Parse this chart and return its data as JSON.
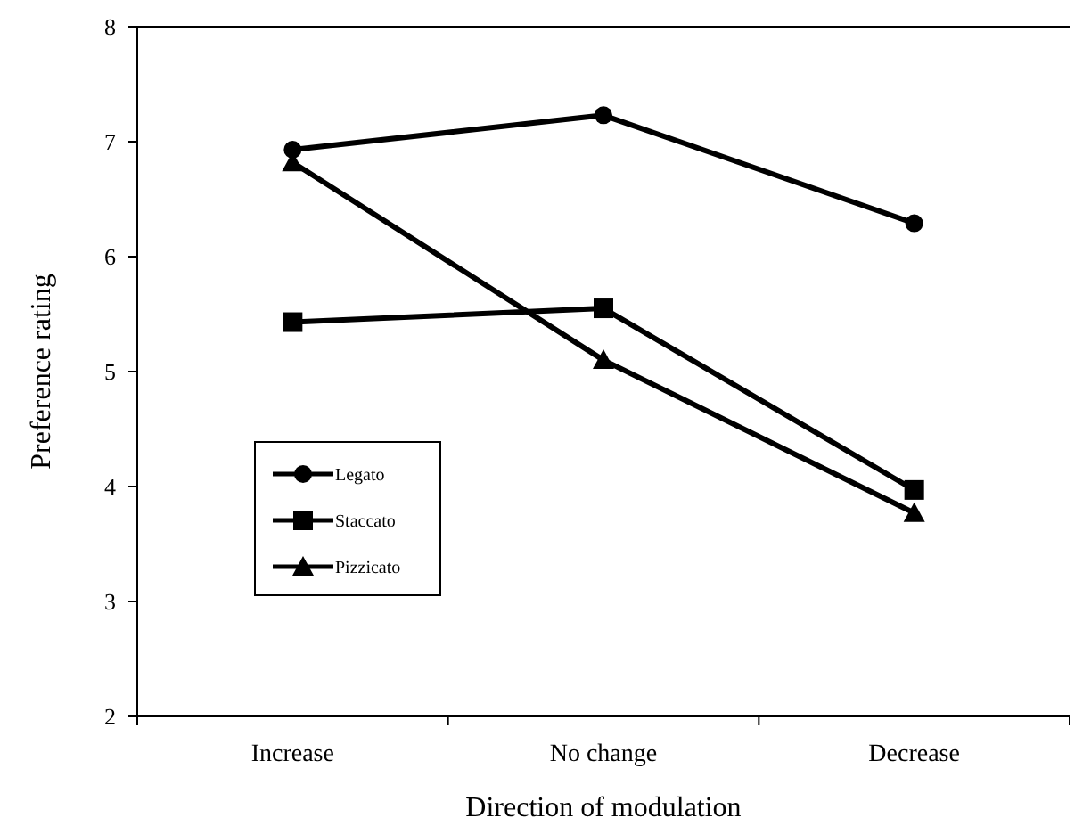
{
  "chart_data": {
    "type": "line",
    "xlabel": "Direction of modulation",
    "ylabel": "Preference rating",
    "categories": [
      "Increase",
      "No change",
      "Decrease"
    ],
    "ylim": [
      2,
      8
    ],
    "yticks": [
      2,
      3,
      4,
      5,
      6,
      7,
      8
    ],
    "grid": false,
    "legend": "bottom left",
    "line_style": "solid",
    "series": [
      {
        "name": "Legato",
        "color": "#000000",
        "marker": "circle",
        "values": [
          6.93,
          7.23,
          6.29
        ]
      },
      {
        "name": "Staccato",
        "color": "#000000",
        "marker": "square",
        "values": [
          5.43,
          5.55,
          3.97
        ]
      },
      {
        "name": "Pizzicato",
        "color": "#000000",
        "marker": "triangle",
        "values": [
          6.82,
          5.1,
          3.77
        ]
      }
    ]
  }
}
